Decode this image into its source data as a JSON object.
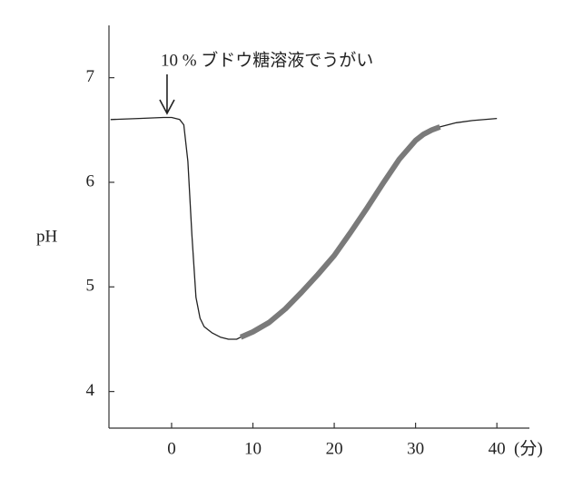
{
  "chart_data": {
    "type": "line",
    "y_label": "pH",
    "x_label": "(分)",
    "annotation": "10 % ブドウ糖溶液でうがい",
    "annotation_x": 0,
    "x": [
      -7.5,
      -4,
      -1,
      0,
      1,
      1.5,
      2,
      2.5,
      3,
      3.5,
      4,
      5,
      6,
      7,
      8,
      8.5,
      10,
      12,
      14,
      16,
      18,
      20,
      22,
      24,
      26,
      28,
      30,
      31,
      32,
      33,
      35,
      37,
      40
    ],
    "series": [
      {
        "color": "#222222",
        "width": 1.3,
        "values": [
          6.6,
          6.61,
          6.62,
          6.62,
          6.6,
          6.55,
          6.2,
          5.5,
          4.9,
          4.7,
          4.62,
          4.56,
          4.52,
          4.5,
          4.5,
          4.52,
          4.57,
          4.66,
          4.79,
          4.95,
          5.12,
          5.3,
          5.52,
          5.75,
          5.99,
          6.22,
          6.4,
          6.46,
          6.5,
          6.53,
          6.57,
          6.59,
          6.61
        ]
      },
      {
        "color": "#7a7a7a",
        "width": 6,
        "values": [
          null,
          null,
          null,
          null,
          null,
          null,
          null,
          null,
          null,
          null,
          null,
          null,
          null,
          null,
          null,
          4.52,
          4.57,
          4.66,
          4.79,
          4.95,
          5.12,
          5.3,
          5.52,
          5.75,
          5.99,
          6.22,
          6.4,
          6.46,
          6.5,
          6.53,
          null,
          null,
          null
        ]
      }
    ],
    "xlim": [
      -7.7,
      44
    ],
    "xticks": [
      0,
      10,
      20,
      30,
      40
    ],
    "ylim": [
      3.65,
      7.5
    ],
    "yticks": [
      4,
      5,
      6,
      7
    ]
  }
}
